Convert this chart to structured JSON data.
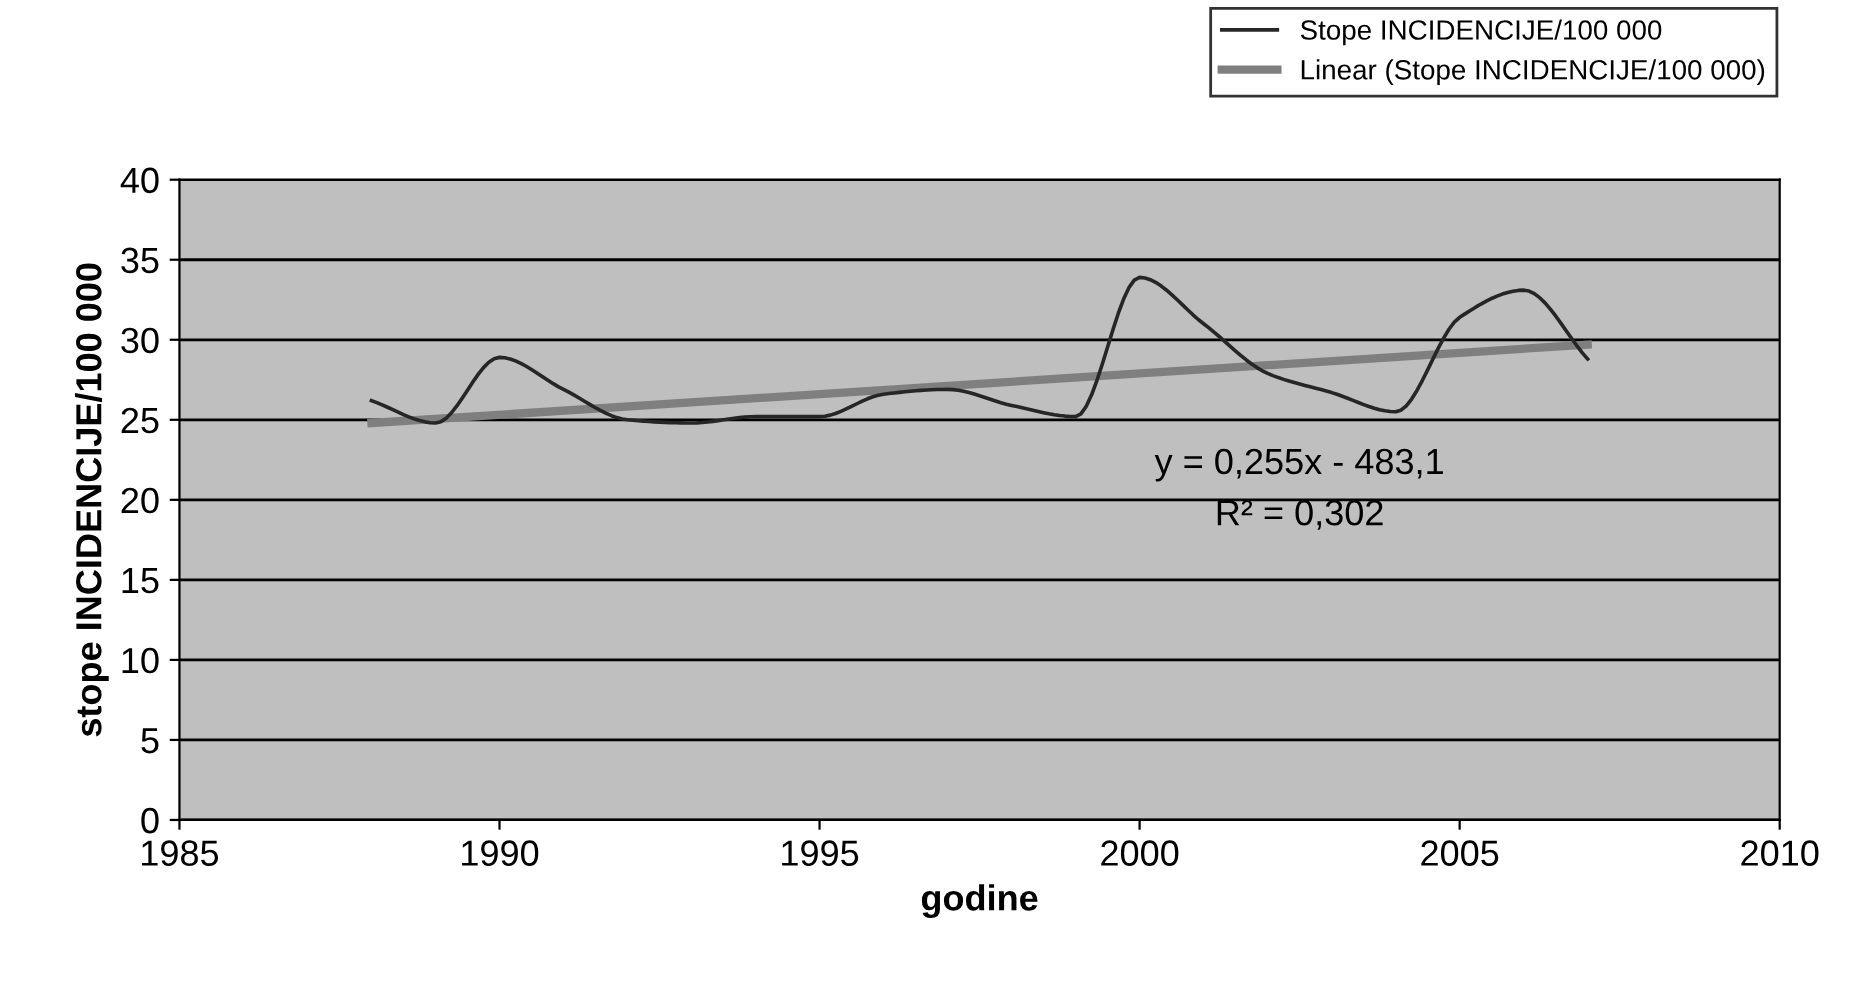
{
  "chart_data": {
    "type": "line",
    "xlabel": "godine",
    "ylabel": "stope INCIDENCIJE/100 000",
    "x": [
      1988,
      1989,
      1990,
      1991,
      1992,
      1993,
      1994,
      1995,
      1996,
      1997,
      1998,
      1999,
      2000,
      2001,
      2002,
      2003,
      2004,
      2005,
      2006,
      2007
    ],
    "series": [
      {
        "name": "Stope INCIDENCIJE/100 000",
        "color": "#262626",
        "values": [
          26.2,
          24.8,
          28.9,
          26.9,
          25.0,
          24.8,
          25.2,
          25.2,
          26.6,
          26.9,
          25.9,
          25.2,
          33.9,
          31.0,
          27.9,
          26.7,
          25.5,
          31.4,
          33.1,
          28.8
        ]
      },
      {
        "name": "Linear (Stope INCIDENCIJE/100 000)",
        "color": "#7f7f7f",
        "type": "line",
        "x": [
          1988,
          2007
        ],
        "values": [
          24.8,
          29.7
        ]
      }
    ],
    "annotations": [
      "y = 0,255x - 483,1",
      "R² = 0,302"
    ],
    "xlim": [
      1985,
      2010
    ],
    "xticks": [
      1985,
      1990,
      1995,
      2000,
      2005,
      2010
    ],
    "ylim": [
      0,
      40
    ],
    "yticks": [
      0,
      5,
      10,
      15,
      20,
      25,
      30,
      35,
      40
    ],
    "grid": "y",
    "legend": "top right",
    "line_style": "solid",
    "marker": "none"
  }
}
